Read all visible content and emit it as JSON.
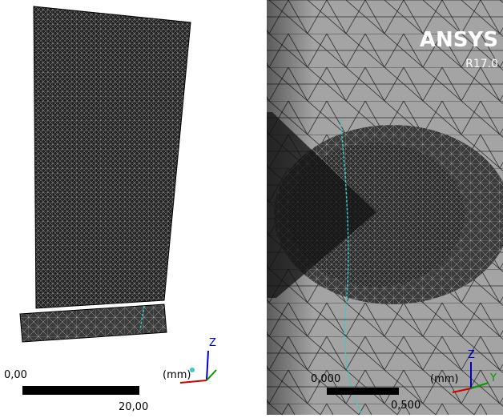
{
  "left_view": {
    "scale": {
      "start": "0,00",
      "end": "20,00",
      "unit": "(mm)"
    },
    "triad": {
      "z": "Z"
    }
  },
  "right_view": {
    "logo": {
      "brand": "ANSYS",
      "version": "R17.0"
    },
    "scale": {
      "start": "0,000",
      "end": "0,500",
      "unit": "(mm)"
    },
    "triad": {
      "z": "Z",
      "y": "Y"
    }
  }
}
